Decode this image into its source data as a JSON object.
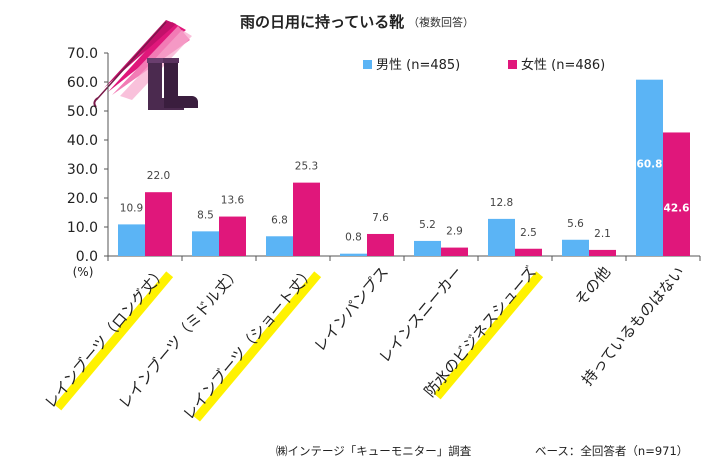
{
  "chart_data": {
    "type": "bar",
    "title": "雨の日用に持っている靴",
    "subtitle": "（複数回答）",
    "ylabel": "(%)",
    "ylim": [
      0,
      70
    ],
    "yticks": [
      "0.0",
      "10.0",
      "20.0",
      "30.0",
      "40.0",
      "50.0",
      "60.0",
      "70.0"
    ],
    "grid": false,
    "legend_position": "top-right",
    "categories": [
      "レインブーツ（ロング丈）",
      "レインブーツ（ミドル丈）",
      "レインブーツ（ショート丈）",
      "レインパンプス",
      "レインスニーカー",
      "防水のビジネスシューズ",
      "その他",
      "持っているものはない"
    ],
    "highlighted_categories": [
      0,
      2,
      5
    ],
    "series": [
      {
        "name": "男性 (n=485)",
        "color": "#5BB4F5",
        "values": [
          10.9,
          8.5,
          6.8,
          0.8,
          5.2,
          12.8,
          5.6,
          60.8
        ]
      },
      {
        "name": "女性 (n=486)",
        "color": "#E0177B",
        "values": [
          22.0,
          13.6,
          25.3,
          7.6,
          2.9,
          2.5,
          2.1,
          42.6
        ]
      }
    ],
    "footer_left": "㈱インテージ「キューモニター」調査",
    "footer_right": "ベース：全回答者（n=971）"
  },
  "colors": {
    "highlight": "#FFF200",
    "axis": "#555555",
    "umbrella": "#E0177B",
    "boots": "#4B2A4F"
  },
  "icons": [
    "umbrella-icon",
    "rain-boots-icon"
  ]
}
